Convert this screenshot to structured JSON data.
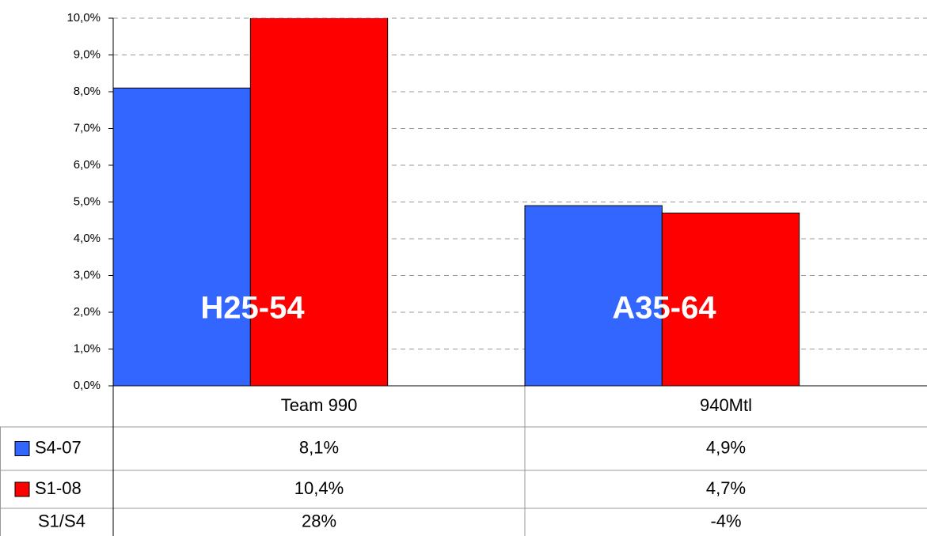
{
  "chart_data": {
    "type": "bar",
    "categories": [
      "Team 990",
      "940Mtl"
    ],
    "series": [
      {
        "name": "S4-07",
        "color": "#3366ff",
        "values": [
          8.1,
          4.9
        ],
        "value_labels": [
          "8,1%",
          "4,9%"
        ]
      },
      {
        "name": "S1-08",
        "color": "#ff0000",
        "values": [
          10.4,
          4.7
        ],
        "value_labels": [
          "10,4%",
          "4,7%"
        ]
      }
    ],
    "ratio_row": {
      "name": "S1/S4",
      "values": [
        28,
        -4
      ],
      "value_labels": [
        "28%",
        "-4%"
      ]
    },
    "annotations": [
      "H25-54",
      "A35-64"
    ],
    "ylim": [
      0,
      10
    ],
    "yticks": [
      {
        "value": 0,
        "label": "0,0%"
      },
      {
        "value": 1,
        "label": "1,0%"
      },
      {
        "value": 2,
        "label": "2,0%"
      },
      {
        "value": 3,
        "label": "3,0%"
      },
      {
        "value": 4,
        "label": "4,0%"
      },
      {
        "value": 5,
        "label": "5,0%"
      },
      {
        "value": 6,
        "label": "6,0%"
      },
      {
        "value": 7,
        "label": "7,0%"
      },
      {
        "value": 8,
        "label": "8,0%"
      },
      {
        "value": 9,
        "label": "9,0%"
      },
      {
        "value": 10,
        "label": "10,0%"
      }
    ],
    "grid": true
  }
}
